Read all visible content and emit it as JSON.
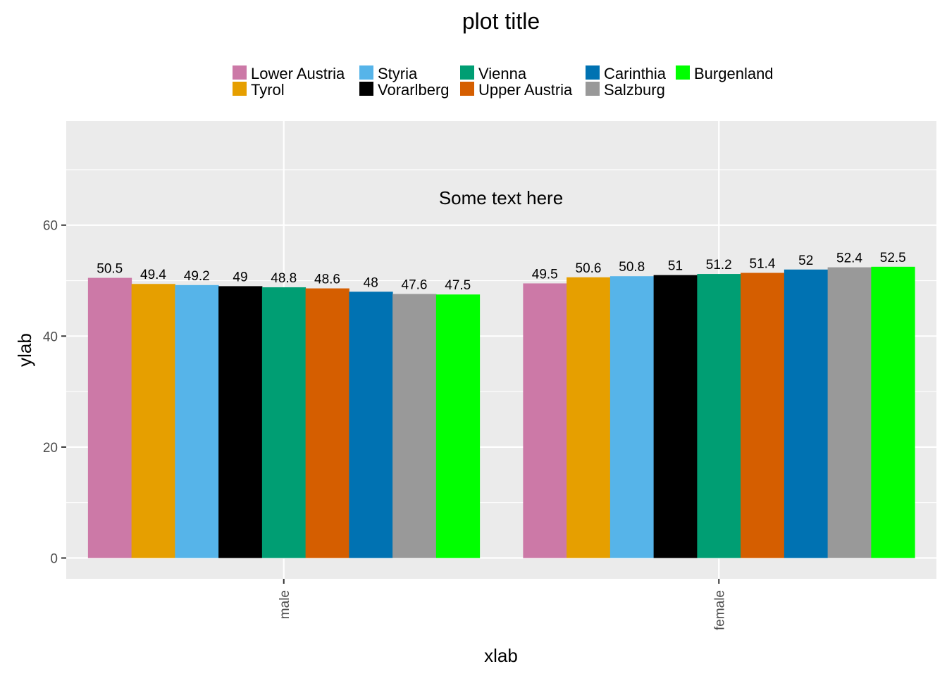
{
  "chart_data": {
    "type": "bar",
    "title": "plot title",
    "xlabel": "xlab",
    "ylabel": "ylab",
    "annotation": "Some text here",
    "categories": [
      "male",
      "female"
    ],
    "series": [
      {
        "name": "Lower Austria",
        "color": "#CC79A7",
        "values": [
          50.5,
          49.5
        ]
      },
      {
        "name": "Tyrol",
        "color": "#E69F00",
        "values": [
          49.4,
          50.6
        ]
      },
      {
        "name": "Styria",
        "color": "#56B4E9",
        "values": [
          49.2,
          50.8
        ]
      },
      {
        "name": "Vorarlberg",
        "color": "#000000",
        "values": [
          49,
          51
        ]
      },
      {
        "name": "Vienna",
        "color": "#009E73",
        "values": [
          48.8,
          51.2
        ]
      },
      {
        "name": "Upper Austria",
        "color": "#D55E00",
        "values": [
          48.6,
          51.4
        ]
      },
      {
        "name": "Carinthia",
        "color": "#0072B2",
        "values": [
          48,
          52
        ]
      },
      {
        "name": "Salzburg",
        "color": "#999999",
        "values": [
          47.6,
          52.4
        ]
      },
      {
        "name": "Burgenland",
        "color": "#00FF00",
        "values": [
          47.5,
          52.5
        ]
      }
    ],
    "ylim": [
      -3.75,
      78.75
    ],
    "yticks": [
      0,
      20,
      40,
      60
    ],
    "grid": true,
    "legend_position": "top",
    "panel_background": "#EBEBEB",
    "grid_color": "#FFFFFF"
  }
}
